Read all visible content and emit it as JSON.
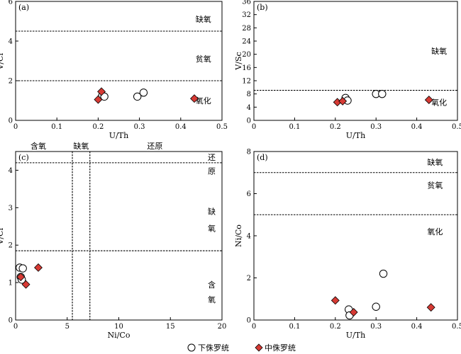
{
  "colors": {
    "lower": "#ffffff",
    "middle": "#d63a34",
    "stroke": "#000000"
  },
  "chart_data": [
    {
      "type": "scatter",
      "panel_label": "(a)",
      "xlabel": "U/Th",
      "ylabel": "V/Cr",
      "xlim": [
        0,
        0.5
      ],
      "ylim": [
        0,
        6
      ],
      "xticks": [
        0,
        0.1,
        0.2,
        0.3,
        0.4,
        0.5
      ],
      "yticks": [
        0,
        2,
        4,
        6
      ],
      "hlines": [
        2.0,
        4.5
      ],
      "vlines": [],
      "zones": [
        {
          "text": "缺氧",
          "x": 0.455,
          "y": 5.1
        },
        {
          "text": "贫氧",
          "x": 0.455,
          "y": 3.1
        },
        {
          "text": "氧化",
          "x": 0.455,
          "y": 1.0
        }
      ],
      "series": [
        {
          "name": "下侏罗统",
          "marker": "circle",
          "x": [
            0.21,
            0.215,
            0.295,
            0.31
          ],
          "y": [
            1.25,
            1.2,
            1.2,
            1.4
          ]
        },
        {
          "name": "中侏罗统",
          "marker": "diamond",
          "x": [
            0.2,
            0.208,
            0.433
          ],
          "y": [
            1.05,
            1.45,
            1.1
          ]
        }
      ]
    },
    {
      "type": "scatter",
      "panel_label": "(b)",
      "xlabel": "U/Th",
      "ylabel": "V/Sc",
      "xlim": [
        0,
        0.5
      ],
      "ylim": [
        0,
        36
      ],
      "xticks": [
        0,
        0.1,
        0.2,
        0.3,
        0.4,
        0.5
      ],
      "yticks": [
        0,
        4,
        8,
        12,
        16,
        20,
        24,
        28,
        32,
        36
      ],
      "hlines": [
        9.1
      ],
      "vlines": [],
      "zones": [
        {
          "text": "缺氧",
          "x": 0.455,
          "y": 21.0
        },
        {
          "text": "氧化",
          "x": 0.455,
          "y": 5.5
        }
      ],
      "series": [
        {
          "name": "下侏罗统",
          "marker": "circle",
          "x": [
            0.225,
            0.23,
            0.3,
            0.315
          ],
          "y": [
            6.8,
            6.0,
            8.0,
            8.0
          ]
        },
        {
          "name": "中侏罗统",
          "marker": "diamond",
          "x": [
            0.205,
            0.218,
            0.43
          ],
          "y": [
            5.5,
            5.8,
            6.2
          ]
        }
      ]
    },
    {
      "type": "scatter",
      "panel_label": "(c)",
      "xlabel": "Ni/Co",
      "ylabel": "V/Cr",
      "xlim": [
        0,
        20
      ],
      "ylim": [
        0,
        4.5
      ],
      "xticks": [
        0,
        5,
        10,
        15,
        20
      ],
      "yticks": [
        0,
        1,
        2,
        3,
        4
      ],
      "hlines": [
        1.85,
        4.2
      ],
      "vlines": [
        5.5,
        7.2
      ],
      "top_labels": [
        {
          "text": "含氧",
          "x": 2.2
        },
        {
          "text": "缺氧",
          "x": 6.35
        },
        {
          "text": "还原",
          "x": 13.5
        }
      ],
      "zones": [
        {
          "text": "还",
          "x": 19.0,
          "y": 4.35
        },
        {
          "text": "原",
          "x": 19.0,
          "y": 3.98
        },
        {
          "text": "缺",
          "x": 19.0,
          "y": 2.9
        },
        {
          "text": "氧",
          "x": 19.0,
          "y": 2.45
        },
        {
          "text": "含",
          "x": 19.0,
          "y": 0.95
        },
        {
          "text": "氧",
          "x": 19.0,
          "y": 0.55
        }
      ],
      "series": [
        {
          "name": "下侏罗统",
          "marker": "circle",
          "x": [
            0.4,
            0.7,
            0.5,
            0.6
          ],
          "y": [
            1.4,
            1.38,
            1.15,
            1.08
          ]
        },
        {
          "name": "中侏罗统",
          "marker": "diamond",
          "x": [
            2.2,
            0.5,
            1.0
          ],
          "y": [
            1.4,
            1.15,
            0.95
          ]
        }
      ]
    },
    {
      "type": "scatter",
      "panel_label": "(d)",
      "xlabel": "U/Th",
      "ylabel": "Ni/Co",
      "xlim": [
        0,
        0.5
      ],
      "ylim": [
        0,
        8
      ],
      "xticks": [
        0,
        0.1,
        0.2,
        0.3,
        0.4,
        0.5
      ],
      "yticks": [
        0,
        2,
        4,
        6,
        8
      ],
      "hlines": [
        5.0,
        7.0
      ],
      "vlines": [],
      "zones": [
        {
          "text": "缺氧",
          "x": 0.445,
          "y": 7.5
        },
        {
          "text": "贫氧",
          "x": 0.445,
          "y": 6.4
        },
        {
          "text": "氧化",
          "x": 0.445,
          "y": 4.2
        }
      ],
      "series": [
        {
          "name": "下侏罗统",
          "marker": "circle",
          "x": [
            0.318,
            0.233,
            0.235,
            0.3
          ],
          "y": [
            2.2,
            0.5,
            0.22,
            0.63
          ]
        },
        {
          "name": "中侏罗统",
          "marker": "diamond",
          "x": [
            0.2,
            0.245,
            0.435
          ],
          "y": [
            0.93,
            0.37,
            0.6
          ]
        }
      ]
    }
  ],
  "legend": [
    {
      "label": "下侏罗统",
      "marker": "circle"
    },
    {
      "label": "中侏罗统",
      "marker": "diamond"
    }
  ]
}
